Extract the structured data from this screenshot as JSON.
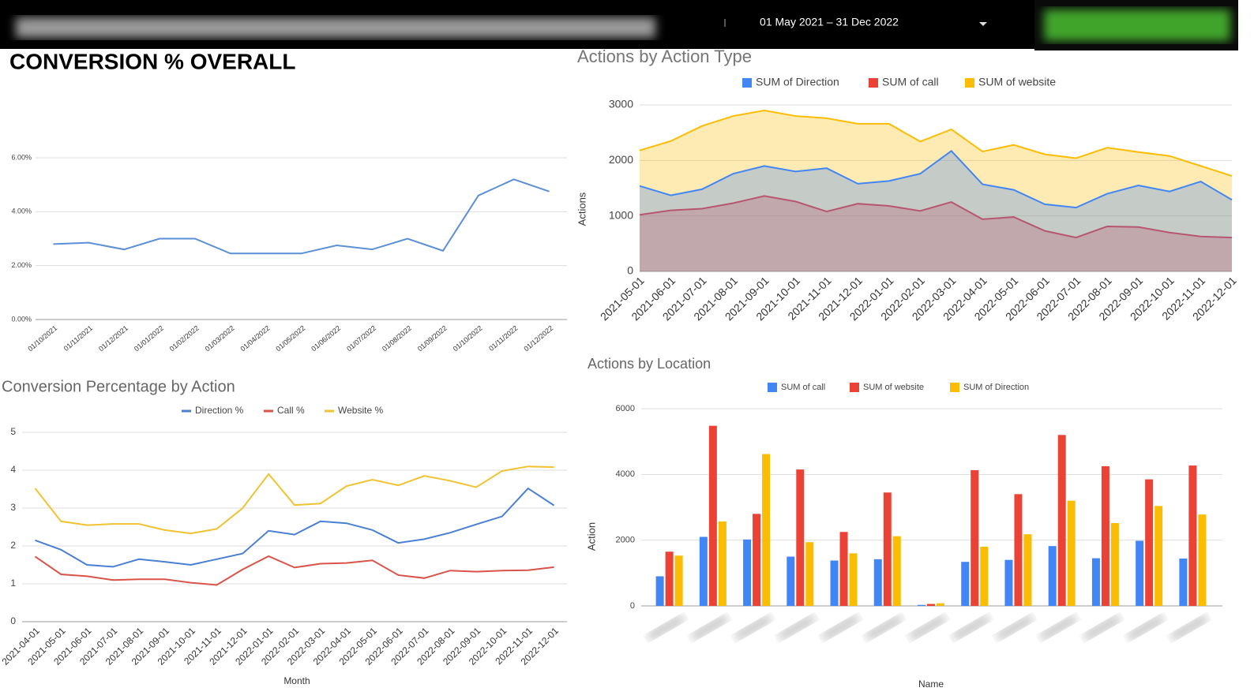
{
  "header": {
    "date_range": "01 May 2021 – 31 Dec 2022"
  },
  "chart_data": [
    {
      "type": "line",
      "title": "CONVERSION % OVERALL",
      "categories": [
        "01/10/2021",
        "01/11/2021",
        "01/12/2021",
        "01/01/2022",
        "01/02/2022",
        "01/03/2022",
        "01/04/2022",
        "01/05/2022",
        "01/06/2022",
        "01/07/2022",
        "01/08/2022",
        "01/09/2022",
        "01/10/2022",
        "01/11/2022",
        "01/12/2022"
      ],
      "values": [
        2.8,
        2.85,
        2.6,
        3.0,
        3.0,
        2.45,
        2.45,
        2.45,
        2.75,
        2.6,
        3.0,
        2.55,
        4.6,
        5.2,
        4.75
      ],
      "color": "#5b8fd6",
      "ylim": [
        0,
        6
      ],
      "yticks": [
        {
          "value": 0,
          "label": "0.00%"
        },
        {
          "value": 2,
          "label": "2.00%"
        },
        {
          "value": 4,
          "label": "4.00%"
        },
        {
          "value": 6,
          "label": "6.00%"
        }
      ],
      "grid": true
    },
    {
      "type": "area",
      "title": "Actions by Action Type",
      "y_label": "Actions",
      "categories": [
        "2021-05-01",
        "2021-06-01",
        "2021-07-01",
        "2021-08-01",
        "2021-09-01",
        "2021-10-01",
        "2021-11-01",
        "2021-12-01",
        "2022-01-01",
        "2022-02-01",
        "2022-03-01",
        "2022-04-01",
        "2022-05-01",
        "2022-06-01",
        "2022-07-01",
        "2022-08-01",
        "2022-09-01",
        "2022-10-01",
        "2022-11-01",
        "2022-12-01"
      ],
      "series": [
        {
          "name": "SUM of Direction",
          "color": "#4285f4",
          "values": [
            1540,
            1370,
            1480,
            1760,
            1900,
            1800,
            1860,
            1580,
            1630,
            1760,
            2170,
            1570,
            1470,
            1210,
            1150,
            1400,
            1550,
            1440,
            1620,
            1290
          ]
        },
        {
          "name": "SUM of call",
          "color": "#ea4335",
          "values": [
            1020,
            1100,
            1130,
            1230,
            1360,
            1260,
            1080,
            1220,
            1180,
            1090,
            1250,
            940,
            980,
            730,
            610,
            810,
            800,
            700,
            630,
            610
          ]
        },
        {
          "name": "SUM of website",
          "color": "#fbbc04",
          "values": [
            2180,
            2350,
            2620,
            2800,
            2900,
            2800,
            2760,
            2660,
            2660,
            2340,
            2560,
            2160,
            2280,
            2110,
            2040,
            2230,
            2150,
            2080,
            1900,
            1720
          ]
        }
      ],
      "ylim": [
        0,
        3000
      ],
      "yticks": [
        0,
        1000,
        2000,
        3000
      ],
      "grid": true
    },
    {
      "type": "line",
      "title": "Conversion Percentage by Action",
      "x_label": "Month",
      "categories": [
        "2021-04-01",
        "2021-05-01",
        "2021-06-01",
        "2021-07-01",
        "2021-08-01",
        "2021-09-01",
        "2021-10-01",
        "2021-11-01",
        "2021-12-01",
        "2022-01-01",
        "2022-02-01",
        "2022-03-01",
        "2022-04-01",
        "2022-05-01",
        "2022-06-01",
        "2022-07-01",
        "2022-08-01",
        "2022-09-01",
        "2022-10-01",
        "2022-11-01",
        "2022-12-01"
      ],
      "series": [
        {
          "name": "Direction %",
          "color": "#4a7fd4",
          "values": [
            2.15,
            1.9,
            1.5,
            1.45,
            1.65,
            1.58,
            1.5,
            1.65,
            1.8,
            2.4,
            2.3,
            2.65,
            2.6,
            2.42,
            2.08,
            2.18,
            2.35,
            2.57,
            2.78,
            3.52,
            3.07
          ]
        },
        {
          "name": "Call %",
          "color": "#d9534a",
          "values": [
            1.72,
            1.25,
            1.2,
            1.1,
            1.12,
            1.12,
            1.03,
            0.97,
            1.38,
            1.73,
            1.43,
            1.53,
            1.55,
            1.62,
            1.23,
            1.15,
            1.35,
            1.32,
            1.35,
            1.36,
            1.44
          ]
        },
        {
          "name": "Website %",
          "color": "#f1c232",
          "values": [
            3.52,
            2.65,
            2.55,
            2.58,
            2.58,
            2.42,
            2.33,
            2.45,
            3.0,
            3.9,
            3.08,
            3.12,
            3.58,
            3.75,
            3.6,
            3.85,
            3.72,
            3.55,
            3.98,
            4.1,
            4.08
          ]
        }
      ],
      "ylim": [
        0,
        5
      ],
      "yticks": [
        0,
        1,
        2,
        3,
        4,
        5
      ],
      "grid": true
    },
    {
      "type": "bar",
      "title": "Actions by Location",
      "y_label": "Action",
      "x_label": "Name",
      "categories": [
        null,
        null,
        null,
        null,
        null,
        null,
        null,
        null,
        null,
        null,
        null,
        null,
        null
      ],
      "series": [
        {
          "name": "SUM of call",
          "color": "#4285f4",
          "values": [
            900,
            2100,
            2020,
            1500,
            1380,
            1420,
            30,
            1340,
            1400,
            1820,
            1450,
            1980,
            1440
          ]
        },
        {
          "name": "SUM of website",
          "color": "#ea4335",
          "values": [
            1650,
            5480,
            2800,
            4150,
            2250,
            3450,
            60,
            4130,
            3400,
            5200,
            4250,
            3850,
            4270
          ]
        },
        {
          "name": "SUM of Direction",
          "color": "#fbbc04",
          "values": [
            1530,
            2570,
            4620,
            1940,
            1600,
            2120,
            80,
            1800,
            2180,
            3200,
            2520,
            3040,
            2780
          ]
        }
      ],
      "ylim": [
        0,
        6000
      ],
      "yticks": [
        0,
        2000,
        4000,
        6000
      ],
      "grid": true
    }
  ]
}
